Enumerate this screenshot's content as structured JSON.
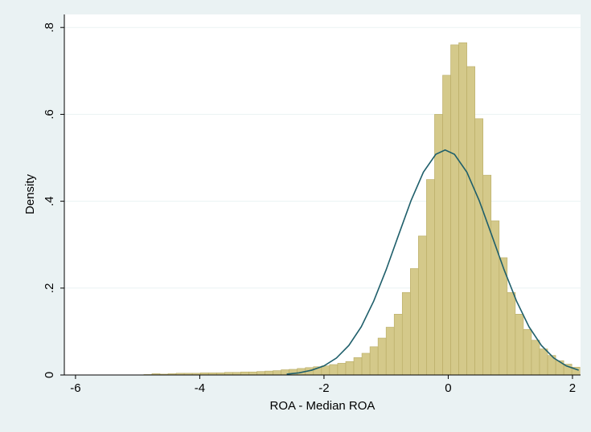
{
  "chart_data": {
    "type": "histogram",
    "xlabel": "ROA - Median ROA",
    "ylabel": "Density",
    "bins": [
      -4.9,
      -4.77,
      -4.64,
      -4.51,
      -4.38,
      -4.25,
      -4.12,
      -3.99,
      -3.86,
      -3.73,
      -3.6,
      -3.47,
      -3.34,
      -3.21,
      -3.08,
      -2.95,
      -2.82,
      -2.69,
      -2.56,
      -2.43,
      -2.3,
      -2.17,
      -2.04,
      -1.91,
      -1.78,
      -1.65,
      -1.52,
      -1.39,
      -1.26,
      -1.13,
      -1,
      -0.87,
      -0.74,
      -0.61,
      -0.48,
      -0.35,
      -0.22,
      -0.09,
      0.04,
      0.17,
      0.3,
      0.43,
      0.56,
      0.69,
      0.82,
      0.95,
      1.08,
      1.21,
      1.34,
      1.47,
      1.6,
      1.73,
      1.86,
      1.99,
      2.12
    ],
    "values": [
      0.001,
      0.003,
      0.002,
      0.003,
      0.004,
      0.004,
      0.004,
      0.005,
      0.005,
      0.005,
      0.006,
      0.006,
      0.007,
      0.007,
      0.008,
      0.009,
      0.01,
      0.012,
      0.013,
      0.015,
      0.017,
      0.019,
      0.021,
      0.024,
      0.027,
      0.031,
      0.04,
      0.05,
      0.065,
      0.085,
      0.11,
      0.14,
      0.19,
      0.245,
      0.32,
      0.45,
      0.6,
      0.69,
      0.76,
      0.765,
      0.71,
      0.59,
      0.46,
      0.355,
      0.27,
      0.19,
      0.14,
      0.105,
      0.08,
      0.06,
      0.045,
      0.033,
      0.025,
      0.018,
      0.01
    ],
    "color": "#d4c98a",
    "edge_color": "#b8ab64",
    "curve": {
      "color": "#1f5f6b",
      "x": [
        -2.6,
        -2.4,
        -2.2,
        -2.0,
        -1.8,
        -1.6,
        -1.4,
        -1.2,
        -1.0,
        -0.8,
        -0.6,
        -0.4,
        -0.2,
        -0.05,
        0.1,
        0.3,
        0.5,
        0.7,
        0.9,
        1.1,
        1.3,
        1.5,
        1.7,
        1.9,
        2.1
      ],
      "values": [
        0.002,
        0.005,
        0.011,
        0.021,
        0.039,
        0.068,
        0.111,
        0.17,
        0.242,
        0.322,
        0.401,
        0.467,
        0.508,
        0.518,
        0.508,
        0.467,
        0.401,
        0.322,
        0.242,
        0.17,
        0.111,
        0.068,
        0.039,
        0.021,
        0.011
      ]
    },
    "xlim": [
      -6.18,
      2.13
    ],
    "ylim": [
      0,
      0.83
    ],
    "xticks": [
      -6,
      -4,
      -2,
      0,
      2
    ],
    "yticks": [
      {
        "value": 0,
        "label": "0"
      },
      {
        "value": 0.2,
        "label": ".2"
      },
      {
        "value": 0.4,
        "label": ".4"
      },
      {
        "value": 0.6,
        "label": ".6"
      },
      {
        "value": 0.8,
        "label": ".8"
      }
    ],
    "grid": true
  }
}
